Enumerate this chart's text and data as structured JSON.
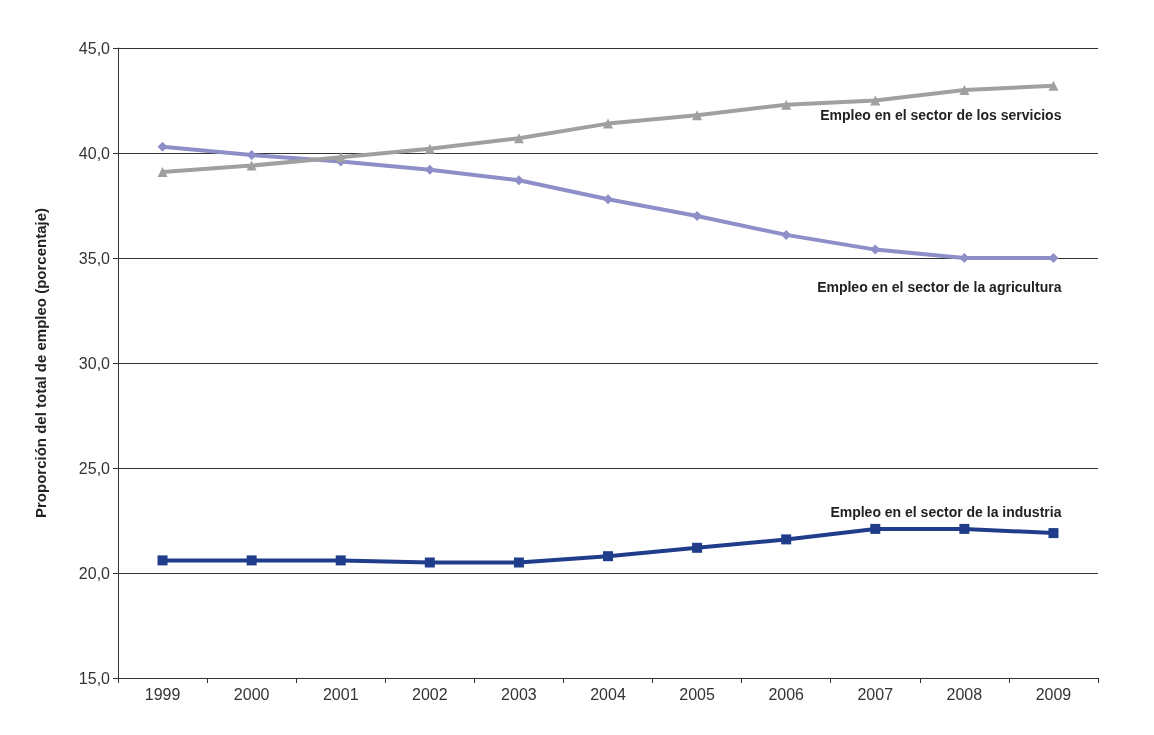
{
  "chart_data": {
    "type": "line",
    "ylabel": "Proporción del total de empleo (porcentaje)",
    "categories": [
      "1999",
      "2000",
      "2001",
      "2002",
      "2003",
      "2004",
      "2005",
      "2006",
      "2007",
      "2008",
      "2009"
    ],
    "series": [
      {
        "name": "Empleo en el sector de los servicios",
        "color": "#a0a0a0",
        "marker": "triangle",
        "values": [
          39.1,
          39.4,
          39.8,
          40.2,
          40.7,
          41.4,
          41.8,
          42.3,
          42.5,
          43.0,
          43.2
        ]
      },
      {
        "name": "Empleo en el sector de la agricultura",
        "color": "#8e8ec8",
        "marker": "diamond",
        "values": [
          40.3,
          39.9,
          39.6,
          39.2,
          38.7,
          37.8,
          37.0,
          36.1,
          35.4,
          35.0,
          35.0
        ]
      },
      {
        "name": "Empleo en el sector de la industria",
        "color": "#1f3d8a",
        "marker": "square",
        "values": [
          20.6,
          20.6,
          20.6,
          20.5,
          20.5,
          20.8,
          21.2,
          21.6,
          22.1,
          22.1,
          21.9
        ]
      }
    ],
    "ylim": [
      15,
      45
    ],
    "yticks": [
      {
        "value": 15,
        "label": "15,0"
      },
      {
        "value": 20,
        "label": "20,0"
      },
      {
        "value": 25,
        "label": "25,0"
      },
      {
        "value": 30,
        "label": "30,0"
      },
      {
        "value": 35,
        "label": "35,0"
      },
      {
        "value": 40,
        "label": "40,0"
      },
      {
        "value": 45,
        "label": "45,0"
      }
    ],
    "grid": "y",
    "legend": false,
    "line_style": "solid"
  }
}
